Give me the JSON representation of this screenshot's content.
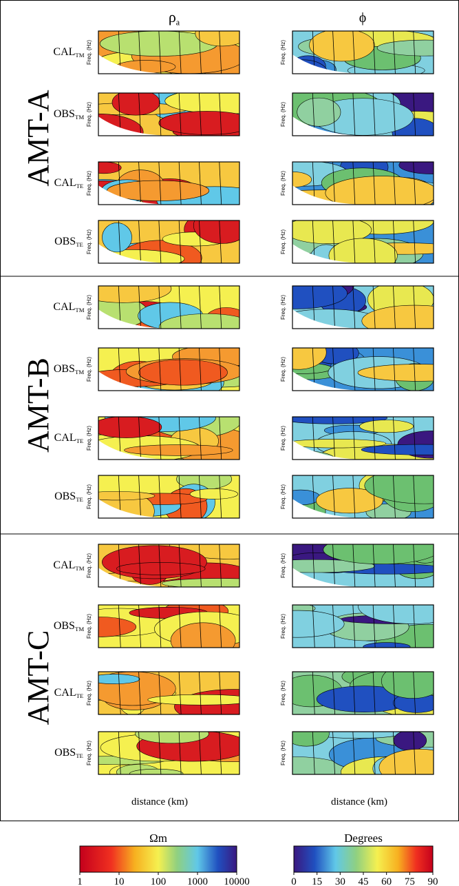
{
  "columns": [
    {
      "title": "ρ",
      "subscript": "a"
    },
    {
      "title": "ϕ"
    }
  ],
  "sections": [
    {
      "label": "AMT-A",
      "rows": [
        {
          "name": "CAL",
          "subscript": "TM"
        },
        {
          "name": "OBS",
          "subscript": "TM"
        },
        {
          "name": "CAL",
          "subscript": "TE"
        },
        {
          "name": "OBS",
          "subscript": "TE"
        }
      ]
    },
    {
      "label": "AMT-B",
      "rows": [
        {
          "name": "CAL",
          "subscript": "TM"
        },
        {
          "name": "OBS",
          "subscript": "TM"
        },
        {
          "name": "CAL",
          "subscript": "TE"
        },
        {
          "name": "OBS",
          "subscript": "TE"
        }
      ]
    },
    {
      "label": "AMT-C",
      "rows": [
        {
          "name": "CAL",
          "subscript": "TM"
        },
        {
          "name": "OBS",
          "subscript": "TM"
        },
        {
          "name": "CAL",
          "subscript": "TE"
        },
        {
          "name": "OBS",
          "subscript": "TE"
        }
      ]
    }
  ],
  "y_axis_label": "Freq. (Hz)",
  "x_axis_label": "distance (km)",
  "colorbars": [
    {
      "title": "Ωm",
      "scale": "log",
      "ticks": [
        1,
        10,
        100,
        1000,
        10000
      ]
    },
    {
      "title": "Degrees",
      "scale": "linear",
      "ticks": [
        0,
        15,
        30,
        45,
        60,
        75,
        90
      ]
    }
  ]
}
